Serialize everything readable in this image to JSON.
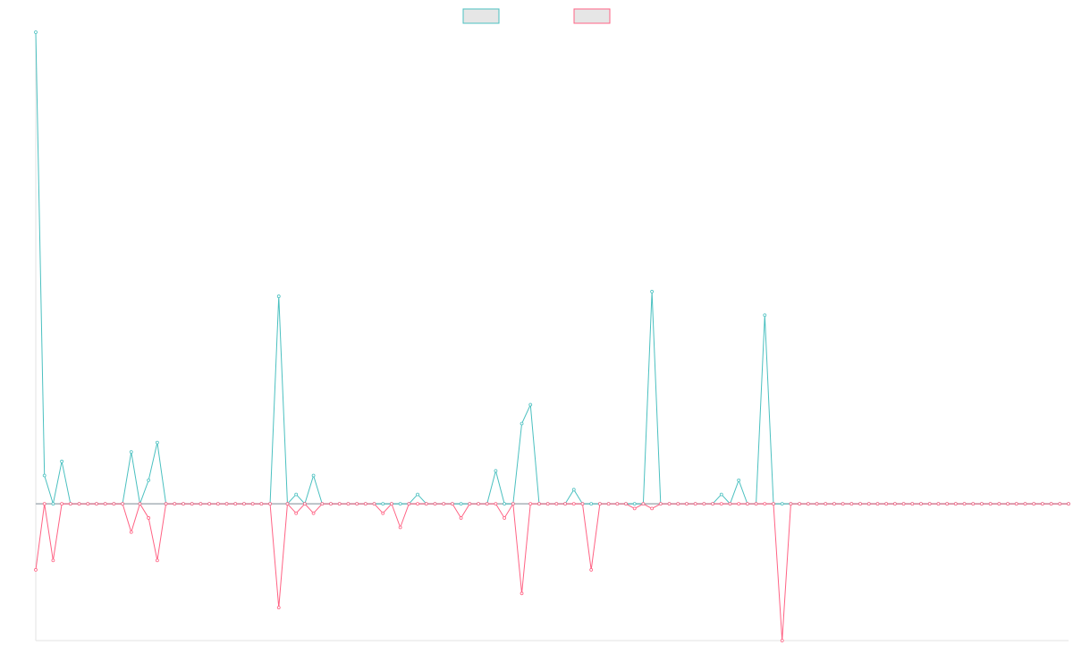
{
  "chart_data": {
    "type": "line",
    "x": [
      0,
      1,
      2,
      3,
      4,
      5,
      6,
      7,
      8,
      9,
      10,
      11,
      12,
      13,
      14,
      15,
      16,
      17,
      18,
      19,
      20,
      21,
      22,
      23,
      24,
      25,
      26,
      27,
      28,
      29,
      30,
      31,
      32,
      33,
      34,
      35,
      36,
      37,
      38,
      39,
      40,
      41,
      42,
      43,
      44,
      45,
      46,
      47,
      48,
      49,
      50,
      51,
      52,
      53,
      54,
      55,
      56,
      57,
      58,
      59,
      60,
      61,
      62,
      63,
      64,
      65,
      66,
      67,
      68,
      69,
      70,
      71,
      72,
      73,
      74,
      75,
      76,
      77,
      78,
      79,
      80,
      81,
      82,
      83,
      84,
      85,
      86,
      87,
      88,
      89,
      90,
      91,
      92,
      93,
      94,
      95,
      96,
      97,
      98,
      99,
      100,
      101,
      102,
      103,
      104,
      105,
      106,
      107,
      108,
      109,
      110,
      111,
      112,
      113,
      114,
      115,
      116,
      117,
      118,
      119
    ],
    "series": [
      {
        "color": "#4bc0c0",
        "values": [
          100,
          6,
          0,
          9,
          0,
          0,
          0,
          0,
          0,
          0,
          0,
          11,
          0,
          5,
          13,
          0,
          0,
          0,
          0,
          0,
          0,
          0,
          0,
          0,
          0,
          0,
          0,
          0,
          44,
          0,
          2,
          0,
          6,
          0,
          0,
          0,
          0,
          0,
          0,
          0,
          0,
          0,
          0,
          0,
          2,
          0,
          0,
          0,
          0,
          0,
          0,
          0,
          0,
          7,
          0,
          0,
          17,
          21,
          0,
          0,
          0,
          0,
          3,
          0,
          0,
          0,
          0,
          0,
          0,
          0,
          0,
          45,
          0,
          0,
          0,
          0,
          0,
          0,
          0,
          2,
          0,
          5,
          0,
          0,
          40,
          0,
          0,
          0,
          0,
          0,
          0,
          0,
          0,
          0,
          0,
          0,
          0,
          0,
          0,
          0,
          0,
          0,
          0,
          0,
          0,
          0,
          0,
          0,
          0,
          0,
          0,
          0,
          0,
          0,
          0,
          0,
          0,
          0,
          0,
          0
        ]
      },
      {
        "color": "#ff6384",
        "values": [
          -14,
          0,
          -12,
          0,
          0,
          0,
          0,
          0,
          0,
          0,
          0,
          -6,
          0,
          -3,
          -12,
          0,
          0,
          0,
          0,
          0,
          0,
          0,
          0,
          0,
          0,
          0,
          0,
          0,
          -22,
          0,
          -2,
          0,
          -2,
          0,
          0,
          0,
          0,
          0,
          0,
          0,
          -2,
          0,
          -5,
          0,
          0,
          0,
          0,
          0,
          0,
          -3,
          0,
          0,
          0,
          0,
          -3,
          0,
          -19,
          0,
          0,
          0,
          0,
          0,
          0,
          0,
          -14,
          0,
          0,
          0,
          0,
          -1,
          0,
          -1,
          0,
          0,
          0,
          0,
          0,
          0,
          0,
          0,
          0,
          0,
          0,
          0,
          0,
          0,
          -29,
          0,
          0,
          0,
          0,
          0,
          0,
          0,
          0,
          0,
          0,
          0,
          0,
          0,
          0,
          0,
          0,
          0,
          0,
          0,
          0,
          0,
          0,
          0,
          0,
          0,
          0,
          0,
          0,
          0,
          0,
          0,
          0,
          0
        ]
      }
    ],
    "ylim": [
      -29,
      100
    ],
    "grid": false,
    "legend": "top-center"
  }
}
